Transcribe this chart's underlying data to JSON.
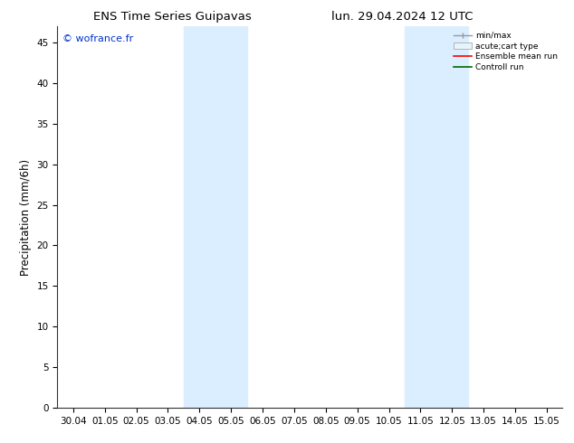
{
  "title_left": "ENS Time Series Guipavas",
  "title_right": "lun. 29.04.2024 12 UTC",
  "ylabel": "Precipitation (mm/6h)",
  "watermark": "© wofrance.fr",
  "watermark_color": "#0033cc",
  "xtick_labels": [
    "30.04",
    "01.05",
    "02.05",
    "03.05",
    "04.05",
    "05.05",
    "06.05",
    "07.05",
    "08.05",
    "09.05",
    "10.05",
    "11.05",
    "12.05",
    "13.05",
    "14.05",
    "15.05"
  ],
  "background_color": "#ffffff",
  "shaded_regions": [
    {
      "xstart": 4,
      "xend": 6,
      "color": "#daeeff"
    },
    {
      "xstart": 11,
      "xend": 13,
      "color": "#daeeff"
    }
  ],
  "ylim": [
    0,
    47
  ],
  "yticks": [
    0,
    5,
    10,
    15,
    20,
    25,
    30,
    35,
    40,
    45
  ],
  "legend_entries": [
    {
      "label": "min/max",
      "color": "#999999"
    },
    {
      "label": "acute;cart type",
      "color": "#cccccc"
    },
    {
      "label": "Ensemble mean run",
      "color": "#ff0000"
    },
    {
      "label": "Controll run",
      "color": "#006600"
    }
  ],
  "tick_label_fontsize": 7.5,
  "axis_label_fontsize": 8.5,
  "title_fontsize": 9.5,
  "watermark_fontsize": 8
}
